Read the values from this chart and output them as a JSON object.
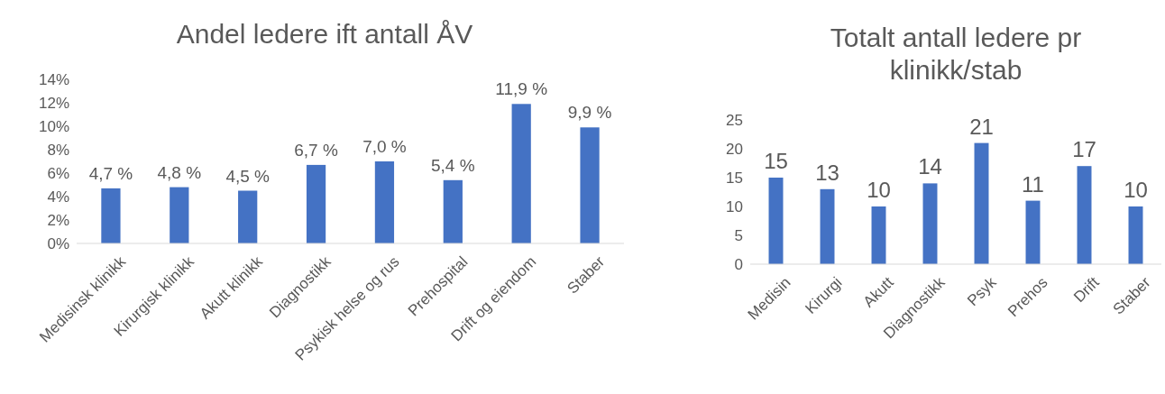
{
  "chart_data": [
    {
      "type": "bar",
      "title": "Andel ledere ift antall ÅV",
      "categories": [
        "Medisinsk klinikk",
        "Kirurgisk klinikk",
        "Akutt klinikk",
        "Diagnostikk",
        "Psykisk helse og rus",
        "Prehospital",
        "Drift og eiendom",
        "Staber"
      ],
      "values": [
        4.7,
        4.8,
        4.5,
        6.7,
        7.0,
        5.4,
        11.9,
        9.9
      ],
      "value_labels": [
        "4,7 %",
        "4,8 %",
        "4,5 %",
        "6,7 %",
        "7,0 %",
        "5,4 %",
        "11,9 %",
        "9,9 %"
      ],
      "color": "#4472c4",
      "ylim": [
        0,
        14
      ],
      "yticks": [
        {
          "value": 0,
          "label": "0%"
        },
        {
          "value": 2,
          "label": "2%"
        },
        {
          "value": 4,
          "label": "4%"
        },
        {
          "value": 6,
          "label": "6%"
        },
        {
          "value": 8,
          "label": "8%"
        },
        {
          "value": 10,
          "label": "10%"
        },
        {
          "value": 12,
          "label": "12%"
        },
        {
          "value": 14,
          "label": "14%"
        }
      ]
    },
    {
      "type": "bar",
      "title": "Totalt antall ledere pr klinikk/stab",
      "categories": [
        "Medisin",
        "Kirurgi",
        "Akutt",
        "Diagnostikk",
        "Psyk",
        "Prehos",
        "Drift",
        "Staber"
      ],
      "values": [
        15,
        13,
        10,
        14,
        21,
        11,
        17,
        10
      ],
      "data_labels": true,
      "color": "#4472c4",
      "ylim": [
        0,
        25
      ],
      "yticks": [
        0,
        5,
        10,
        15,
        20,
        25
      ]
    }
  ]
}
